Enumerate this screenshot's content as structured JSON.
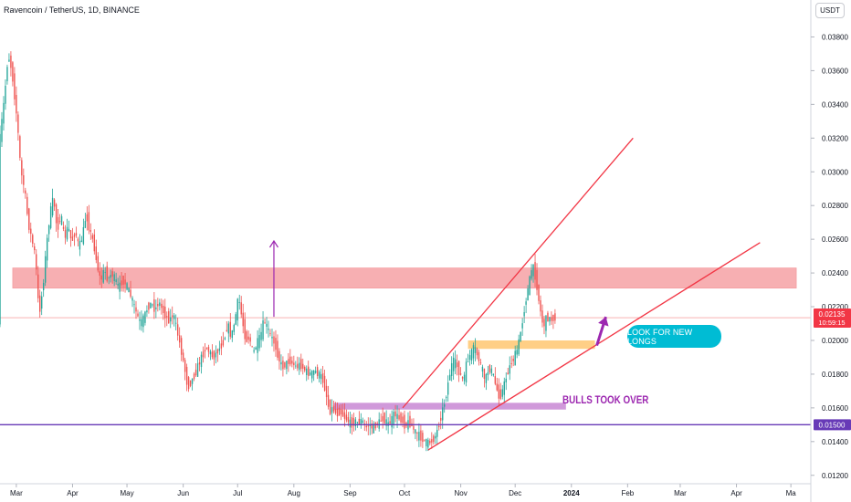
{
  "header": {
    "title": "Ravencoin / TetherUS, 1D, BINANCE",
    "quote_unit": "USDT"
  },
  "annotations": {
    "look_for_longs": "LOOK FOR NEW LONGS",
    "bulls_took_over": "BULLS TOOK OVER"
  },
  "price_labels": {
    "current_price": "0.02135",
    "countdown": "10:59:15",
    "support_level": "0.01500"
  },
  "colors": {
    "up_candle": "#26a69a",
    "down_candle": "#ef5350",
    "resistance_zone": "#f7a7aa",
    "support_zone": "#ce93d8",
    "demand_zone": "#ffcc80",
    "trendline": "#f23645",
    "support_line": "#673ab7",
    "arrow": "#9c27b0",
    "badge_cyan": "#00bcd4"
  },
  "chart_data": {
    "type": "candlestick",
    "title": "Ravencoin / TetherUS, 1D, BINANCE",
    "ylim": [
      0.0115,
      0.039
    ],
    "y_ticks": [
      "0.01200",
      "0.01400",
      "0.01600",
      "0.01800",
      "0.02000",
      "0.02200",
      "0.02400",
      "0.02600",
      "0.02800",
      "0.03000",
      "0.03200",
      "0.03400",
      "0.03600",
      "0.03800"
    ],
    "y_tick_values": [
      0.012,
      0.014,
      0.016,
      0.018,
      0.02,
      0.022,
      0.024,
      0.026,
      0.028,
      0.03,
      0.032,
      0.034,
      0.036,
      0.038
    ],
    "x_ticks": [
      "Mar",
      "Apr",
      "May",
      "Jun",
      "Jul",
      "Aug",
      "Sep",
      "Oct",
      "Nov",
      "Dec",
      "2024",
      "Feb",
      "Mar",
      "Apr",
      "Ma"
    ],
    "x_tick_days": [
      0,
      31,
      61,
      92,
      122,
      153,
      184,
      214,
      245,
      275,
      306,
      337,
      366,
      397,
      427
    ],
    "x_range_days": [
      -9,
      438
    ],
    "grid": false,
    "current_price": 0.02135,
    "price_path": [
      [
        -9,
        0.0315
      ],
      [
        -6,
        0.0345
      ],
      [
        -4,
        0.037
      ],
      [
        -2,
        0.036
      ],
      [
        1,
        0.033
      ],
      [
        3,
        0.03
      ],
      [
        5,
        0.029
      ],
      [
        7,
        0.027
      ],
      [
        9,
        0.026
      ],
      [
        11,
        0.025
      ],
      [
        13,
        0.0215
      ],
      [
        15,
        0.023
      ],
      [
        17,
        0.0255
      ],
      [
        19,
        0.0275
      ],
      [
        21,
        0.0285
      ],
      [
        23,
        0.0265
      ],
      [
        25,
        0.0275
      ],
      [
        27,
        0.026
      ],
      [
        29,
        0.0268
      ],
      [
        31,
        0.0258
      ],
      [
        33,
        0.0265
      ],
      [
        35,
        0.0255
      ],
      [
        37,
        0.0262
      ],
      [
        39,
        0.0275
      ],
      [
        41,
        0.0265
      ],
      [
        43,
        0.0258
      ],
      [
        45,
        0.0245
      ],
      [
        47,
        0.0235
      ],
      [
        49,
        0.0242
      ],
      [
        51,
        0.0236
      ],
      [
        53,
        0.024
      ],
      [
        55,
        0.0236
      ],
      [
        57,
        0.0231
      ],
      [
        59,
        0.0236
      ],
      [
        61,
        0.0233
      ],
      [
        63,
        0.0228
      ],
      [
        65,
        0.0222
      ],
      [
        67,
        0.0215
      ],
      [
        69,
        0.021
      ],
      [
        71,
        0.0214
      ],
      [
        73,
        0.022
      ],
      [
        75,
        0.0222
      ],
      [
        77,
        0.0218
      ],
      [
        79,
        0.0223
      ],
      [
        81,
        0.0218
      ],
      [
        83,
        0.0214
      ],
      [
        85,
        0.0212
      ],
      [
        87,
        0.0216
      ],
      [
        89,
        0.0206
      ],
      [
        91,
        0.0196
      ],
      [
        93,
        0.0185
      ],
      [
        95,
        0.0172
      ],
      [
        97,
        0.0176
      ],
      [
        99,
        0.018
      ],
      [
        101,
        0.0186
      ],
      [
        103,
        0.0191
      ],
      [
        105,
        0.0196
      ],
      [
        107,
        0.0193
      ],
      [
        109,
        0.019
      ],
      [
        111,
        0.0193
      ],
      [
        113,
        0.0196
      ],
      [
        115,
        0.02
      ],
      [
        117,
        0.021
      ],
      [
        119,
        0.0202
      ],
      [
        121,
        0.0212
      ],
      [
        123,
        0.0226
      ],
      [
        125,
        0.0212
      ],
      [
        127,
        0.02
      ],
      [
        129,
        0.0202
      ],
      [
        131,
        0.0192
      ],
      [
        133,
        0.0198
      ],
      [
        135,
        0.0202
      ],
      [
        137,
        0.0212
      ],
      [
        139,
        0.0207
      ],
      [
        141,
        0.0202
      ],
      [
        143,
        0.0198
      ],
      [
        145,
        0.019
      ],
      [
        147,
        0.0184
      ],
      [
        149,
        0.0186
      ],
      [
        151,
        0.0188
      ],
      [
        153,
        0.0186
      ],
      [
        155,
        0.0184
      ],
      [
        157,
        0.0186
      ],
      [
        159,
        0.0183
      ],
      [
        161,
        0.0181
      ],
      [
        163,
        0.018
      ],
      [
        165,
        0.0182
      ],
      [
        167,
        0.018
      ],
      [
        169,
        0.0178
      ],
      [
        171,
        0.017
      ],
      [
        173,
        0.0158
      ],
      [
        175,
        0.016
      ],
      [
        177,
        0.0156
      ],
      [
        179,
        0.0158
      ],
      [
        181,
        0.0155
      ],
      [
        183,
        0.0153
      ],
      [
        185,
        0.015
      ],
      [
        187,
        0.0152
      ],
      [
        189,
        0.0151
      ],
      [
        191,
        0.0153
      ],
      [
        193,
        0.0148
      ],
      [
        195,
        0.015
      ],
      [
        197,
        0.0148
      ],
      [
        199,
        0.015
      ],
      [
        201,
        0.0152
      ],
      [
        203,
        0.0154
      ],
      [
        205,
        0.015
      ],
      [
        207,
        0.0152
      ],
      [
        209,
        0.0157
      ],
      [
        211,
        0.0154
      ],
      [
        213,
        0.0153
      ],
      [
        215,
        0.0149
      ],
      [
        217,
        0.0152
      ],
      [
        219,
        0.0148
      ],
      [
        221,
        0.0145
      ],
      [
        223,
        0.0143
      ],
      [
        225,
        0.0141
      ],
      [
        227,
        0.0139
      ],
      [
        229,
        0.014
      ],
      [
        231,
        0.0142
      ],
      [
        233,
        0.0148
      ],
      [
        235,
        0.0157
      ],
      [
        237,
        0.0165
      ],
      [
        239,
        0.0178
      ],
      [
        241,
        0.0188
      ],
      [
        243,
        0.0186
      ],
      [
        245,
        0.018
      ],
      [
        247,
        0.0176
      ],
      [
        249,
        0.0188
      ],
      [
        251,
        0.0192
      ],
      [
        253,
        0.0196
      ],
      [
        255,
        0.019
      ],
      [
        257,
        0.0184
      ],
      [
        259,
        0.0176
      ],
      [
        261,
        0.0184
      ],
      [
        263,
        0.0181
      ],
      [
        265,
        0.0172
      ],
      [
        267,
        0.0166
      ],
      [
        269,
        0.0172
      ],
      [
        271,
        0.018
      ],
      [
        273,
        0.0186
      ],
      [
        275,
        0.019
      ],
      [
        277,
        0.0196
      ],
      [
        279,
        0.0208
      ],
      [
        281,
        0.0222
      ],
      [
        283,
        0.0233
      ],
      [
        285,
        0.0245
      ],
      [
        287,
        0.0236
      ],
      [
        289,
        0.022
      ],
      [
        291,
        0.0208
      ],
      [
        293,
        0.0214
      ],
      [
        295,
        0.0212
      ],
      [
        297,
        0.02135
      ]
    ],
    "zones": [
      {
        "kind": "resistance",
        "x": [
          -2,
          430
        ],
        "y": [
          0.0231,
          0.0243
        ]
      },
      {
        "kind": "demand",
        "x": [
          249,
          319
        ],
        "y": [
          0.0195,
          0.02
        ]
      },
      {
        "kind": "support",
        "x": [
          175,
          303
        ],
        "y": [
          0.0159,
          0.0163
        ]
      }
    ],
    "trendlines": [
      {
        "name": "upper-channel",
        "from": [
          213,
          0.016
        ],
        "to": [
          340,
          0.032
        ]
      },
      {
        "name": "lower-channel",
        "from": [
          227,
          0.0135
        ],
        "to": [
          410,
          0.0258
        ]
      },
      {
        "name": "support-line",
        "from": [
          -9,
          0.015
        ],
        "to": [
          438,
          0.015
        ]
      }
    ],
    "arrows": [
      {
        "name": "up-arrow",
        "from": [
          142,
          0.0214
        ],
        "to": [
          142,
          0.0259
        ]
      },
      {
        "name": "long-arrow",
        "from": [
          320,
          0.0197
        ],
        "to": [
          325,
          0.0214
        ]
      }
    ]
  }
}
